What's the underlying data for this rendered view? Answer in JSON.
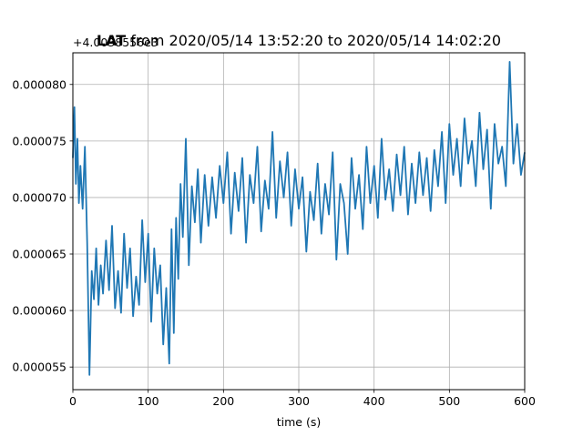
{
  "chart_data": {
    "type": "line",
    "title_bold": "LAT",
    "title_rest": " from 2020/05/14 13:52:20 to 2020/05/14 14:02:20",
    "offset_label": "+4.0038556e3",
    "xlabel": "time (s)",
    "ylabel": "",
    "xlim": [
      0,
      600
    ],
    "ylim": [
      5.3e-05,
      8.28e-05
    ],
    "x_ticks": [
      0,
      100,
      200,
      300,
      400,
      500,
      600
    ],
    "x_tick_labels": [
      "0",
      "100",
      "200",
      "300",
      "400",
      "500",
      "600"
    ],
    "y_ticks": [
      5.5e-05,
      6e-05,
      6.5e-05,
      7e-05,
      7.5e-05,
      8e-05
    ],
    "y_tick_labels": [
      "0.000055",
      "0.000060",
      "0.000065",
      "0.000070",
      "0.000075",
      "0.000080"
    ],
    "grid": true,
    "legend": "none",
    "series": [
      {
        "color": "#1f77b4",
        "x": [
          0,
          2,
          4,
          6,
          8,
          10,
          13,
          16,
          19,
          22,
          25,
          28,
          31,
          34,
          37,
          40,
          44,
          48,
          52,
          56,
          60,
          64,
          68,
          72,
          76,
          80,
          84,
          88,
          92,
          96,
          100,
          104,
          108,
          112,
          116,
          120,
          124,
          128,
          131,
          134,
          137,
          140,
          143,
          146,
          150,
          154,
          158,
          162,
          166,
          170,
          175,
          180,
          185,
          190,
          195,
          200,
          205,
          210,
          215,
          220,
          225,
          230,
          235,
          240,
          245,
          250,
          255,
          260,
          265,
          270,
          275,
          280,
          285,
          290,
          295,
          300,
          305,
          310,
          315,
          320,
          325,
          330,
          335,
          340,
          345,
          350,
          355,
          360,
          365,
          370,
          375,
          380,
          385,
          390,
          395,
          400,
          405,
          410,
          415,
          420,
          425,
          430,
          435,
          440,
          445,
          450,
          455,
          460,
          465,
          470,
          475,
          480,
          485,
          490,
          495,
          500,
          505,
          510,
          515,
          520,
          525,
          530,
          535,
          540,
          545,
          550,
          555,
          560,
          565,
          570,
          575,
          580,
          585,
          590,
          595,
          600
        ],
        "values": [
          7.35e-05,
          7.8e-05,
          7.12e-05,
          7.52e-05,
          6.95e-05,
          7.28e-05,
          6.9e-05,
          7.45e-05,
          6.6e-05,
          5.43e-05,
          6.35e-05,
          6.1e-05,
          6.55e-05,
          6.05e-05,
          6.4e-05,
          6.15e-05,
          6.62e-05,
          6.18e-05,
          6.75e-05,
          6.02e-05,
          6.35e-05,
          5.98e-05,
          6.68e-05,
          6.2e-05,
          6.55e-05,
          5.95e-05,
          6.3e-05,
          6.05e-05,
          6.8e-05,
          6.25e-05,
          6.68e-05,
          5.9e-05,
          6.55e-05,
          6.15e-05,
          6.4e-05,
          5.7e-05,
          6.2e-05,
          5.53e-05,
          6.72e-05,
          5.8e-05,
          6.82e-05,
          6.28e-05,
          7.12e-05,
          6.65e-05,
          7.52e-05,
          6.4e-05,
          7.1e-05,
          6.78e-05,
          7.25e-05,
          6.6e-05,
          7.2e-05,
          6.75e-05,
          7.18e-05,
          6.82e-05,
          7.28e-05,
          6.95e-05,
          7.4e-05,
          6.68e-05,
          7.22e-05,
          6.88e-05,
          7.35e-05,
          6.6e-05,
          7.2e-05,
          6.95e-05,
          7.45e-05,
          6.7e-05,
          7.15e-05,
          6.9e-05,
          7.58e-05,
          6.82e-05,
          7.32e-05,
          7e-05,
          7.4e-05,
          6.75e-05,
          7.25e-05,
          6.9e-05,
          7.18e-05,
          6.52e-05,
          7.05e-05,
          6.8e-05,
          7.3e-05,
          6.68e-05,
          7.12e-05,
          6.85e-05,
          7.4e-05,
          6.45e-05,
          7.12e-05,
          6.95e-05,
          6.5e-05,
          7.35e-05,
          6.9e-05,
          7.2e-05,
          6.72e-05,
          7.45e-05,
          6.95e-05,
          7.28e-05,
          6.82e-05,
          7.52e-05,
          6.98e-05,
          7.25e-05,
          6.88e-05,
          7.38e-05,
          7.02e-05,
          7.45e-05,
          6.85e-05,
          7.3e-05,
          6.95e-05,
          7.4e-05,
          7.02e-05,
          7.35e-05,
          6.88e-05,
          7.42e-05,
          7.1e-05,
          7.58e-05,
          6.95e-05,
          7.65e-05,
          7.2e-05,
          7.52e-05,
          7.1e-05,
          7.7e-05,
          7.3e-05,
          7.5e-05,
          7.1e-05,
          7.75e-05,
          7.25e-05,
          7.6e-05,
          6.9e-05,
          7.65e-05,
          7.3e-05,
          7.45e-05,
          7.1e-05,
          8.2e-05,
          7.3e-05,
          7.65e-05,
          7.2e-05,
          7.4e-05
        ]
      }
    ]
  }
}
